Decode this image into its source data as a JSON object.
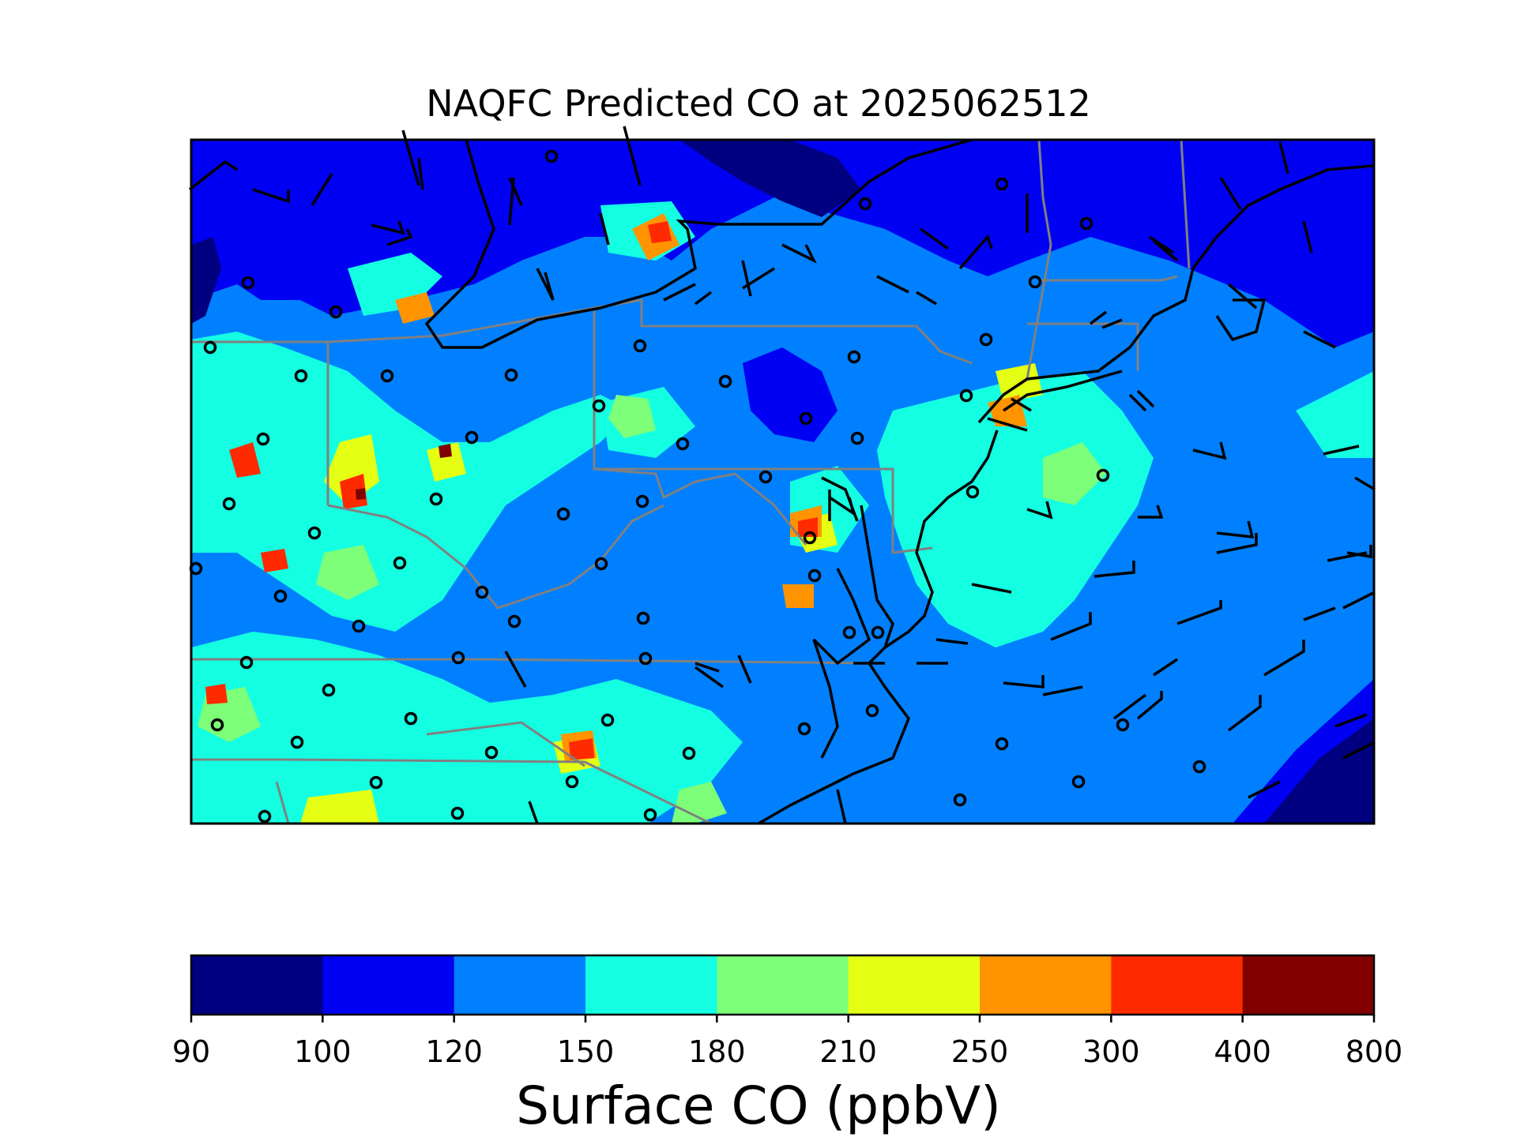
{
  "title": "NAQFC Predicted CO at 2025062512",
  "colorbar": {
    "label": "Surface CO (ppbV)",
    "bounds": [
      "90",
      "100",
      "120",
      "150",
      "180",
      "210",
      "250",
      "300",
      "400",
      "800"
    ],
    "colors": [
      "#000080",
      "#0000f2",
      "#0080ff",
      "#14ffe2",
      "#7dff7a",
      "#e4ff13",
      "#ff9400",
      "#ff2a00",
      "#800000"
    ]
  },
  "map": {
    "background_color": "#0080ff",
    "coastline_color": "#000000",
    "state_border_color": "#808080",
    "station_marker": "open-circle",
    "wind_symbol": "wind-barb"
  }
}
